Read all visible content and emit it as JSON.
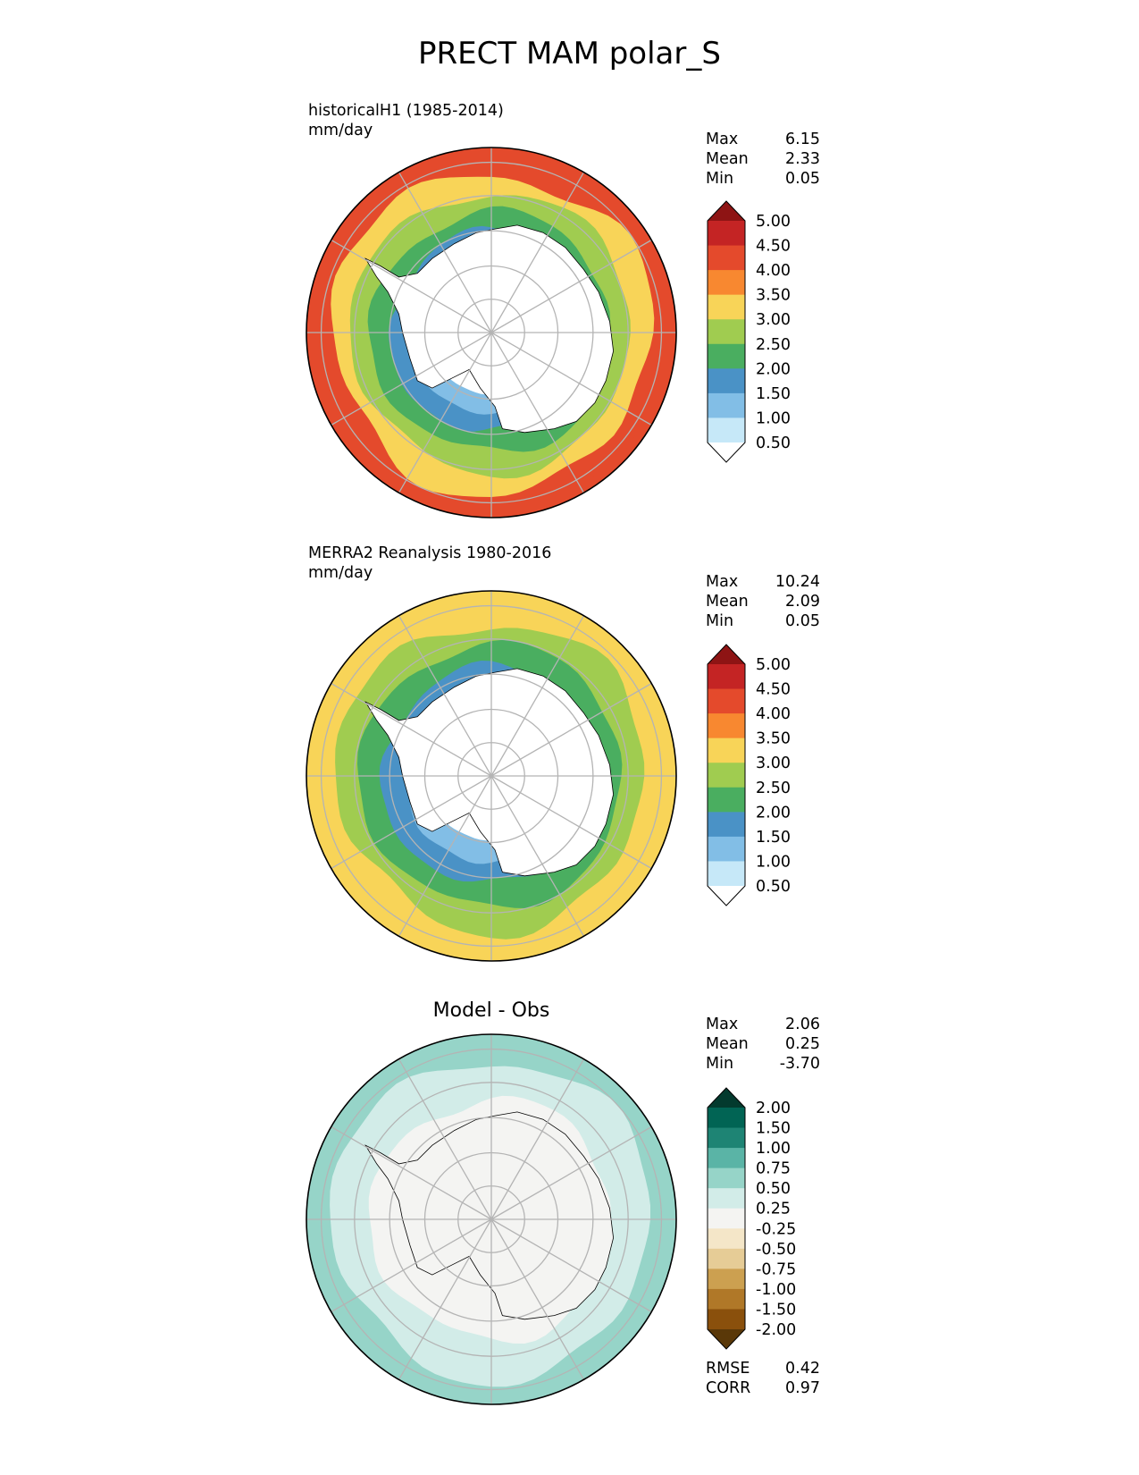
{
  "figure": {
    "title": "PRECT MAM polar_S"
  },
  "panels": [
    {
      "id": "test",
      "subtitle_line1": "historicalH1 (1985-2014)",
      "subtitle_line2": "mm/day",
      "stats": [
        {
          "label": "Max",
          "value": "6.15"
        },
        {
          "label": "Mean",
          "value": "2.33"
        },
        {
          "label": "Min",
          "value": "0.05"
        }
      ]
    },
    {
      "id": "reference",
      "subtitle_line1": "MERRA2 Reanalysis 1980-2016",
      "subtitle_line2": "mm/day",
      "stats": [
        {
          "label": "Max",
          "value": "10.24"
        },
        {
          "label": "Mean",
          "value": "2.09"
        },
        {
          "label": "Min",
          "value": "0.05"
        }
      ]
    },
    {
      "id": "diff",
      "center_title": "Model - Obs",
      "stats": [
        {
          "label": "Max",
          "value": "2.06"
        },
        {
          "label": "Mean",
          "value": "0.25"
        },
        {
          "label": "Min",
          "value": "-3.70"
        }
      ],
      "metrics": [
        {
          "label": "RMSE",
          "value": "0.42"
        },
        {
          "label": "CORR",
          "value": "0.97"
        }
      ]
    }
  ],
  "chart_data": [
    {
      "type": "heatmap",
      "projection": "south polar stereographic",
      "title": "historicalH1 (1985-2014)",
      "units": "mm/day",
      "colorbar": {
        "ticks": [
          "0.50",
          "1.00",
          "1.50",
          "2.00",
          "2.50",
          "3.00",
          "3.50",
          "4.00",
          "4.50",
          "5.00"
        ],
        "colors": [
          "#ffffff",
          "#c6e8f8",
          "#82bee6",
          "#4a92c6",
          "#4aae60",
          "#a0cc50",
          "#f8d458",
          "#f88830",
          "#e44a2c",
          "#c42424",
          "#8e1414"
        ],
        "extend": "both"
      },
      "rings_mm_day": [
        4.3,
        4.0,
        3.4,
        2.8,
        2.3,
        1.6,
        1.1,
        0.3
      ],
      "stats": {
        "max": 6.15,
        "mean": 2.33,
        "min": 0.05
      }
    },
    {
      "type": "heatmap",
      "projection": "south polar stereographic",
      "title": "MERRA2 Reanalysis 1980-2016",
      "units": "mm/day",
      "colorbar": {
        "ticks": [
          "0.50",
          "1.00",
          "1.50",
          "2.00",
          "2.50",
          "3.00",
          "3.50",
          "4.00",
          "4.50",
          "5.00"
        ],
        "colors": [
          "#ffffff",
          "#c6e8f8",
          "#82bee6",
          "#4a92c6",
          "#4aae60",
          "#a0cc50",
          "#f8d458",
          "#f88830",
          "#e44a2c",
          "#c42424",
          "#8e1414"
        ],
        "extend": "both"
      },
      "rings_mm_day": [
        3.2,
        3.1,
        2.7,
        2.3,
        1.7,
        1.2,
        0.3
      ],
      "stats": {
        "max": 10.24,
        "mean": 2.09,
        "min": 0.05
      }
    },
    {
      "type": "heatmap",
      "projection": "south polar stereographic",
      "title": "Model - Obs",
      "units": "mm/day",
      "colorbar": {
        "ticks": [
          "-2.00",
          "-1.50",
          "-1.00",
          "-0.75",
          "-0.50",
          "-0.25",
          "0.25",
          "0.50",
          "0.75",
          "1.00",
          "1.50",
          "2.00"
        ],
        "colors": [
          "#5a3808",
          "#8a500c",
          "#b07828",
          "#cca050",
          "#e6cc96",
          "#f4e6c8",
          "#f4f4f2",
          "#d2ece8",
          "#96d4c8",
          "#5ab4a6",
          "#1e8474",
          "#016454",
          "#033a2e"
        ],
        "extend": "both"
      },
      "rings_mm_day": [
        0.6,
        0.3,
        0.1,
        0.0
      ],
      "stats": {
        "max": 2.06,
        "mean": 0.25,
        "min": -3.7,
        "rmse": 0.42,
        "corr": 0.97
      }
    }
  ]
}
